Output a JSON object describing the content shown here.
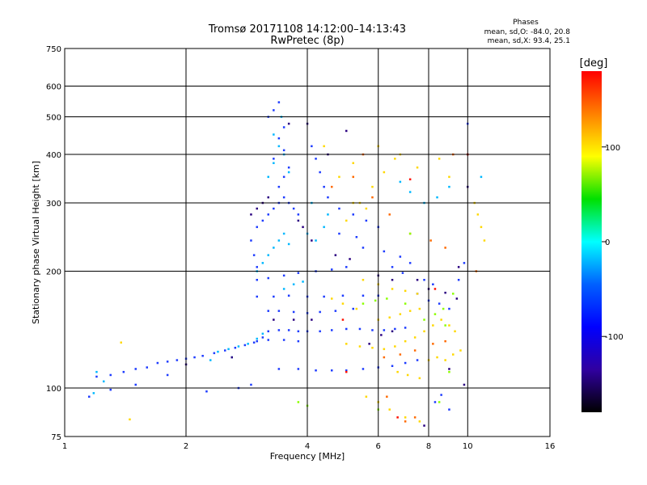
{
  "chart_data": {
    "type": "scatter",
    "title": "Tromsø 20171108 14:12:00–14:13:43",
    "subtitle": "RwPretec (8p)",
    "xlabel": "Frequency [MHz]",
    "ylabel": "Stationary phase Virtual Height [km]",
    "xscale": "log",
    "yscale": "log",
    "xlim": [
      1,
      16
    ],
    "ylim": [
      75,
      750
    ],
    "x_ticks": [
      1,
      2,
      4,
      6,
      8,
      10,
      16
    ],
    "y_ticks": [
      75,
      100,
      200,
      300,
      400,
      500,
      600,
      750
    ],
    "x_gridlines": [
      2,
      4,
      6,
      8,
      10
    ],
    "y_gridlines": [
      100,
      200,
      300,
      400,
      500,
      600
    ],
    "grid": true,
    "info": {
      "heading": "Phases",
      "line1": "mean, sd,O: -84.0, 20.8",
      "line2": "mean, sd,X:  93.4, 25.1"
    },
    "colorbar": {
      "label": "[deg]",
      "range": [
        -180,
        180
      ],
      "ticks": [
        100,
        0,
        -100
      ],
      "colors": [
        "#ff0000",
        "#ff8000",
        "#ffff00",
        "#00e000",
        "#00ffff",
        "#0060ff",
        "#0000ff",
        "#3000a0",
        "#000000"
      ]
    },
    "series": [
      {
        "name": "",
        "mode": "O",
        "phase": -90,
        "color": "#1e3cff",
        "points": [
          [
            1.2,
            107
          ],
          [
            1.3,
            108
          ],
          [
            1.4,
            110
          ],
          [
            1.5,
            112
          ],
          [
            1.6,
            113
          ],
          [
            1.7,
            116
          ],
          [
            1.8,
            117
          ],
          [
            1.9,
            118
          ],
          [
            2.0,
            119
          ],
          [
            2.1,
            120
          ],
          [
            2.2,
            121
          ],
          [
            2.35,
            123
          ],
          [
            2.5,
            125
          ],
          [
            2.65,
            127
          ],
          [
            2.8,
            129
          ],
          [
            2.95,
            131
          ],
          [
            3.1,
            135
          ],
          [
            3.2,
            140
          ],
          [
            3.4,
            141
          ],
          [
            3.6,
            141
          ],
          [
            3.8,
            140
          ],
          [
            4.0,
            140
          ],
          [
            4.3,
            140
          ],
          [
            4.6,
            141
          ],
          [
            5.0,
            142
          ],
          [
            5.4,
            142
          ],
          [
            5.8,
            141
          ],
          [
            6.2,
            141
          ],
          [
            6.6,
            142
          ],
          [
            7.0,
            143
          ],
          [
            3.2,
            158
          ],
          [
            3.4,
            158
          ],
          [
            3.7,
            157
          ],
          [
            4.0,
            156
          ],
          [
            4.3,
            157
          ],
          [
            4.7,
            158
          ],
          [
            5.2,
            160
          ],
          [
            3.4,
            112
          ],
          [
            3.8,
            112
          ],
          [
            4.2,
            111
          ],
          [
            4.6,
            111
          ],
          [
            5.0,
            111
          ],
          [
            5.5,
            112
          ],
          [
            6.0,
            113
          ],
          [
            6.5,
            114
          ],
          [
            7.0,
            116
          ],
          [
            7.5,
            118
          ],
          [
            3.0,
            132
          ],
          [
            3.2,
            133
          ],
          [
            3.5,
            133
          ],
          [
            3.8,
            132
          ],
          [
            3.0,
            172
          ],
          [
            3.3,
            172
          ],
          [
            3.6,
            173
          ],
          [
            4.0,
            172
          ],
          [
            4.4,
            172
          ],
          [
            4.9,
            173
          ],
          [
            5.5,
            173
          ],
          [
            6.0,
            173
          ],
          [
            3.0,
            190
          ],
          [
            3.2,
            192
          ],
          [
            3.5,
            195
          ],
          [
            3.8,
            198
          ],
          [
            4.2,
            200
          ],
          [
            4.6,
            202
          ],
          [
            5.0,
            205
          ],
          [
            3.0,
            260
          ],
          [
            3.1,
            270
          ],
          [
            3.2,
            280
          ],
          [
            3.3,
            290
          ],
          [
            3.4,
            300
          ],
          [
            3.5,
            310
          ],
          [
            3.6,
            300
          ],
          [
            3.7,
            290
          ],
          [
            3.8,
            280
          ],
          [
            3.4,
            330
          ],
          [
            3.5,
            350
          ],
          [
            3.6,
            370
          ],
          [
            3.3,
            390
          ],
          [
            3.5,
            410
          ],
          [
            3.4,
            440
          ],
          [
            3.5,
            470
          ],
          [
            4.1,
            420
          ],
          [
            4.2,
            390
          ],
          [
            4.3,
            360
          ],
          [
            4.4,
            330
          ],
          [
            4.5,
            310
          ],
          [
            4.8,
            290
          ],
          [
            5.2,
            280
          ],
          [
            5.6,
            270
          ],
          [
            6.0,
            260
          ],
          [
            2.9,
            240
          ],
          [
            2.95,
            220
          ],
          [
            3.0,
            205
          ],
          [
            7.5,
            175
          ],
          [
            8.0,
            168
          ],
          [
            8.5,
            165
          ],
          [
            9.0,
            160
          ],
          [
            9.5,
            190
          ],
          [
            9.8,
            210
          ],
          [
            3.2,
            500
          ],
          [
            3.3,
            520
          ],
          [
            3.4,
            545
          ],
          [
            10.0,
            480
          ],
          [
            1.15,
            95
          ],
          [
            1.3,
            99
          ],
          [
            1.5,
            102
          ],
          [
            1.8,
            108
          ],
          [
            2.25,
            98
          ],
          [
            2.7,
            100
          ],
          [
            2.9,
            102
          ],
          [
            8.3,
            92
          ],
          [
            8.6,
            96
          ],
          [
            9.0,
            88
          ],
          [
            5.5,
            230
          ],
          [
            6.2,
            225
          ],
          [
            6.8,
            218
          ],
          [
            7.2,
            210
          ],
          [
            4.8,
            250
          ],
          [
            5.3,
            245
          ],
          [
            6.5,
            205
          ],
          [
            6.9,
            198
          ],
          [
            7.8,
            190
          ],
          [
            8.2,
            185
          ]
        ]
      },
      {
        "name": "",
        "mode": "X",
        "phase": 95,
        "color": "#ffd800",
        "points": [
          [
            5.0,
            130
          ],
          [
            5.4,
            128
          ],
          [
            5.8,
            127
          ],
          [
            6.2,
            126
          ],
          [
            6.6,
            128
          ],
          [
            7.0,
            132
          ],
          [
            7.4,
            135
          ],
          [
            7.8,
            140
          ],
          [
            8.2,
            145
          ],
          [
            8.6,
            150
          ],
          [
            9.0,
            145
          ],
          [
            9.3,
            140
          ],
          [
            6.0,
            150
          ],
          [
            6.4,
            152
          ],
          [
            6.8,
            155
          ],
          [
            7.2,
            158
          ],
          [
            7.6,
            160
          ],
          [
            5.5,
            190
          ],
          [
            6.0,
            185
          ],
          [
            6.5,
            180
          ],
          [
            7.0,
            178
          ],
          [
            7.5,
            175
          ],
          [
            5.0,
            270
          ],
          [
            5.4,
            300
          ],
          [
            5.8,
            330
          ],
          [
            6.2,
            360
          ],
          [
            6.6,
            390
          ],
          [
            5.2,
            380
          ],
          [
            6.0,
            420
          ],
          [
            6.8,
            400
          ],
          [
            7.5,
            370
          ],
          [
            8.5,
            390
          ],
          [
            9.0,
            350
          ],
          [
            5.6,
            95
          ],
          [
            6.0,
            92
          ],
          [
            6.4,
            88
          ],
          [
            7.0,
            84
          ],
          [
            7.6,
            82
          ],
          [
            8.0,
            118
          ],
          [
            8.4,
            120
          ],
          [
            8.8,
            118
          ],
          [
            9.2,
            122
          ],
          [
            9.6,
            125
          ],
          [
            10.4,
            300
          ],
          [
            10.8,
            260
          ],
          [
            11.0,
            240
          ],
          [
            10.6,
            280
          ],
          [
            4.6,
            170
          ],
          [
            4.9,
            165
          ],
          [
            5.3,
            160
          ],
          [
            6.7,
            110
          ],
          [
            7.1,
            108
          ],
          [
            7.6,
            106
          ],
          [
            5.2,
            300
          ],
          [
            5.6,
            290
          ],
          [
            4.4,
            420
          ],
          [
            4.8,
            350
          ],
          [
            1.45,
            83
          ],
          [
            1.38,
            131
          ]
        ]
      },
      {
        "name": "",
        "mode": "O",
        "phase": -40,
        "color": "#00b8ff",
        "points": [
          [
            2.4,
            124
          ],
          [
            2.55,
            126
          ],
          [
            2.7,
            128
          ],
          [
            2.85,
            130
          ],
          [
            3.0,
            134
          ],
          [
            3.1,
            138
          ],
          [
            3.3,
            230
          ],
          [
            3.4,
            240
          ],
          [
            3.5,
            250
          ],
          [
            3.6,
            235
          ],
          [
            3.2,
            350
          ],
          [
            3.3,
            380
          ],
          [
            3.4,
            420
          ],
          [
            3.5,
            400
          ],
          [
            3.6,
            360
          ],
          [
            3.0,
            200
          ],
          [
            3.1,
            210
          ],
          [
            3.2,
            220
          ],
          [
            4.0,
            250
          ],
          [
            4.2,
            240
          ],
          [
            4.4,
            260
          ],
          [
            3.5,
            180
          ],
          [
            3.7,
            185
          ],
          [
            3.9,
            188
          ],
          [
            3.3,
            450
          ],
          [
            3.45,
            500
          ],
          [
            1.2,
            110
          ],
          [
            1.25,
            104
          ],
          [
            1.18,
            97
          ],
          [
            2.3,
            118
          ],
          [
            2.6,
            120
          ],
          [
            6.8,
            340
          ],
          [
            7.2,
            320
          ],
          [
            7.8,
            300
          ],
          [
            8.4,
            310
          ],
          [
            9.0,
            330
          ],
          [
            10.8,
            350
          ],
          [
            4.1,
            300
          ],
          [
            4.5,
            280
          ]
        ]
      },
      {
        "name": "",
        "mode": "X",
        "phase": 130,
        "color": "#ff6a00",
        "points": [
          [
            5.2,
            350
          ],
          [
            5.8,
            310
          ],
          [
            6.4,
            280
          ],
          [
            7.2,
            250
          ],
          [
            8.1,
            240
          ],
          [
            8.8,
            230
          ],
          [
            6.2,
            120
          ],
          [
            6.8,
            122
          ],
          [
            7.4,
            125
          ],
          [
            8.2,
            130
          ],
          [
            8.8,
            132
          ],
          [
            7.0,
            82
          ],
          [
            7.4,
            84
          ],
          [
            6.3,
            95
          ],
          [
            10.5,
            200
          ],
          [
            5.5,
            400
          ],
          [
            4.6,
            330
          ],
          [
            9.2,
            400
          ]
        ]
      },
      {
        "name": "",
        "mode": "O",
        "phase": -150,
        "color": "#2a0080",
        "points": [
          [
            2.9,
            280
          ],
          [
            3.0,
            290
          ],
          [
            3.1,
            300
          ],
          [
            3.2,
            310
          ],
          [
            3.8,
            270
          ],
          [
            3.9,
            260
          ],
          [
            4.1,
            240
          ],
          [
            4.7,
            220
          ],
          [
            5.1,
            215
          ],
          [
            6.0,
            195
          ],
          [
            6.5,
            190
          ],
          [
            7.5,
            190
          ],
          [
            8.0,
            180
          ],
          [
            8.8,
            176
          ],
          [
            9.4,
            170
          ],
          [
            5.7,
            130
          ],
          [
            6.1,
            137
          ],
          [
            6.5,
            140
          ],
          [
            2.0,
            115
          ],
          [
            2.6,
            120
          ],
          [
            3.3,
            150
          ],
          [
            3.7,
            150
          ],
          [
            4.1,
            150
          ],
          [
            9.5,
            205
          ],
          [
            10.0,
            330
          ],
          [
            4.5,
            400
          ],
          [
            5.0,
            460
          ],
          [
            4.0,
            480
          ],
          [
            3.6,
            480
          ],
          [
            7.8,
            80
          ],
          [
            9.8,
            102
          ],
          [
            9.0,
            112
          ]
        ]
      },
      {
        "name": "",
        "mode": "X",
        "phase": 40,
        "color": "#8cff00",
        "points": [
          [
            5.5,
            165
          ],
          [
            5.9,
            168
          ],
          [
            6.3,
            170
          ],
          [
            7.0,
            165
          ],
          [
            7.8,
            150
          ],
          [
            8.3,
            155
          ],
          [
            8.7,
            160
          ],
          [
            9.2,
            175
          ],
          [
            6.0,
            88
          ],
          [
            8.5,
            92
          ],
          [
            4.0,
            90
          ],
          [
            3.8,
            92
          ],
          [
            9.0,
            110
          ],
          [
            8.8,
            145
          ],
          [
            7.2,
            250
          ]
        ]
      },
      {
        "name": "",
        "mode": "X",
        "phase": 170,
        "color": "#ff1000",
        "points": [
          [
            5.0,
            110
          ],
          [
            6.7,
            84
          ],
          [
            7.2,
            345
          ],
          [
            8.3,
            180
          ],
          [
            4.9,
            150
          ],
          [
            10.0,
            400
          ]
        ]
      }
    ]
  }
}
